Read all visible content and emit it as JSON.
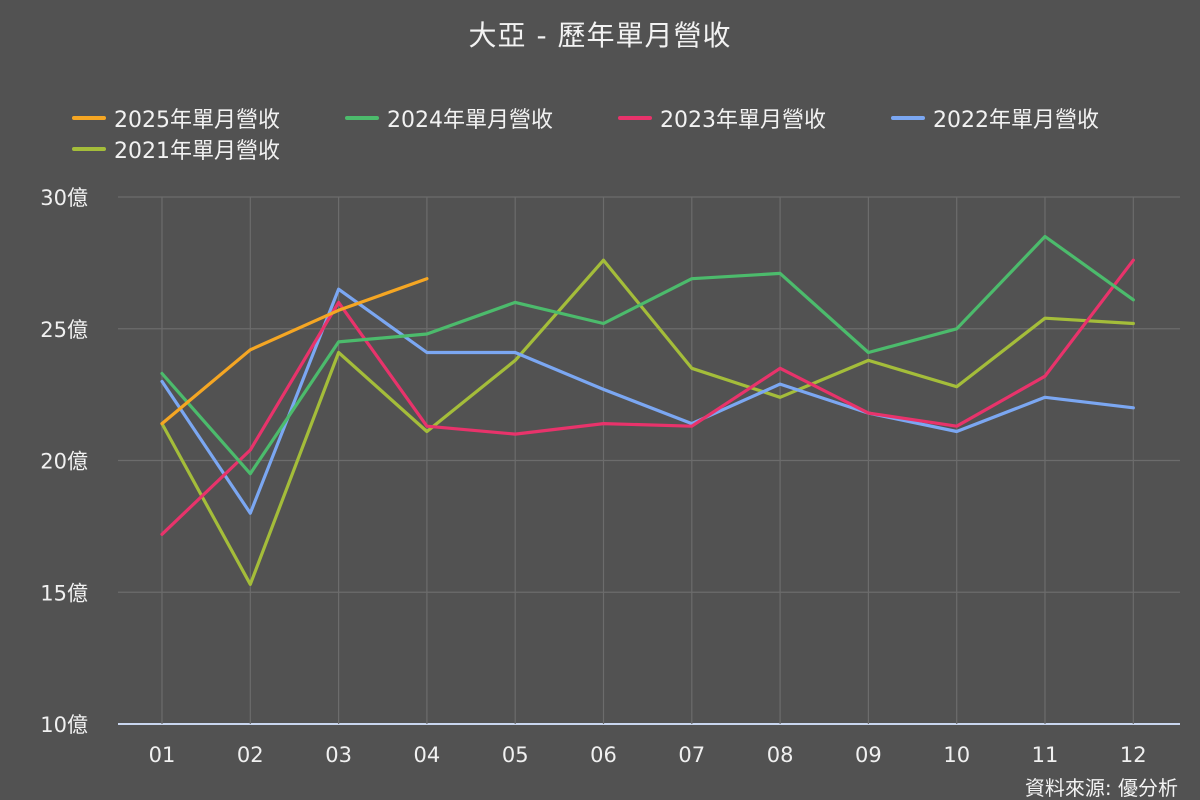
{
  "chart_data": {
    "type": "line",
    "title": "大亞 - 歷年單月營收",
    "categories": [
      "01",
      "02",
      "03",
      "04",
      "05",
      "06",
      "07",
      "08",
      "09",
      "10",
      "11",
      "12"
    ],
    "y_ticks": [
      "10億",
      "15億",
      "20億",
      "25億",
      "30億"
    ],
    "y_tick_values": [
      10,
      15,
      20,
      25,
      30
    ],
    "ylim": [
      10,
      30
    ],
    "y_unit": "億",
    "grid": true,
    "legend_position": "top",
    "series": [
      {
        "name": "2025年單月營收",
        "color": "#f5a623",
        "values": [
          21.4,
          24.2,
          25.7,
          26.9,
          null,
          null,
          null,
          null,
          null,
          null,
          null,
          null
        ]
      },
      {
        "name": "2024年單月營收",
        "color": "#4cbb6c",
        "values": [
          23.3,
          19.5,
          24.5,
          24.8,
          26.0,
          25.2,
          26.9,
          27.1,
          24.1,
          25.0,
          28.5,
          26.1
        ]
      },
      {
        "name": "2023年單月營收",
        "color": "#e8336b",
        "values": [
          17.2,
          20.4,
          26.0,
          21.3,
          21.0,
          21.4,
          21.3,
          23.5,
          21.8,
          21.3,
          23.2,
          27.6
        ]
      },
      {
        "name": "2022年單月營收",
        "color": "#7ba7f2",
        "values": [
          23.0,
          18.0,
          26.5,
          24.1,
          24.1,
          22.7,
          21.4,
          22.9,
          21.8,
          21.1,
          22.4,
          22.0
        ]
      },
      {
        "name": "2021年單月營收",
        "color": "#a4bd3a",
        "values": [
          21.4,
          15.3,
          24.1,
          21.1,
          23.8,
          27.6,
          23.5,
          22.4,
          23.8,
          22.8,
          25.4,
          25.2
        ]
      }
    ]
  },
  "source_note": "資料來源: 優分析"
}
